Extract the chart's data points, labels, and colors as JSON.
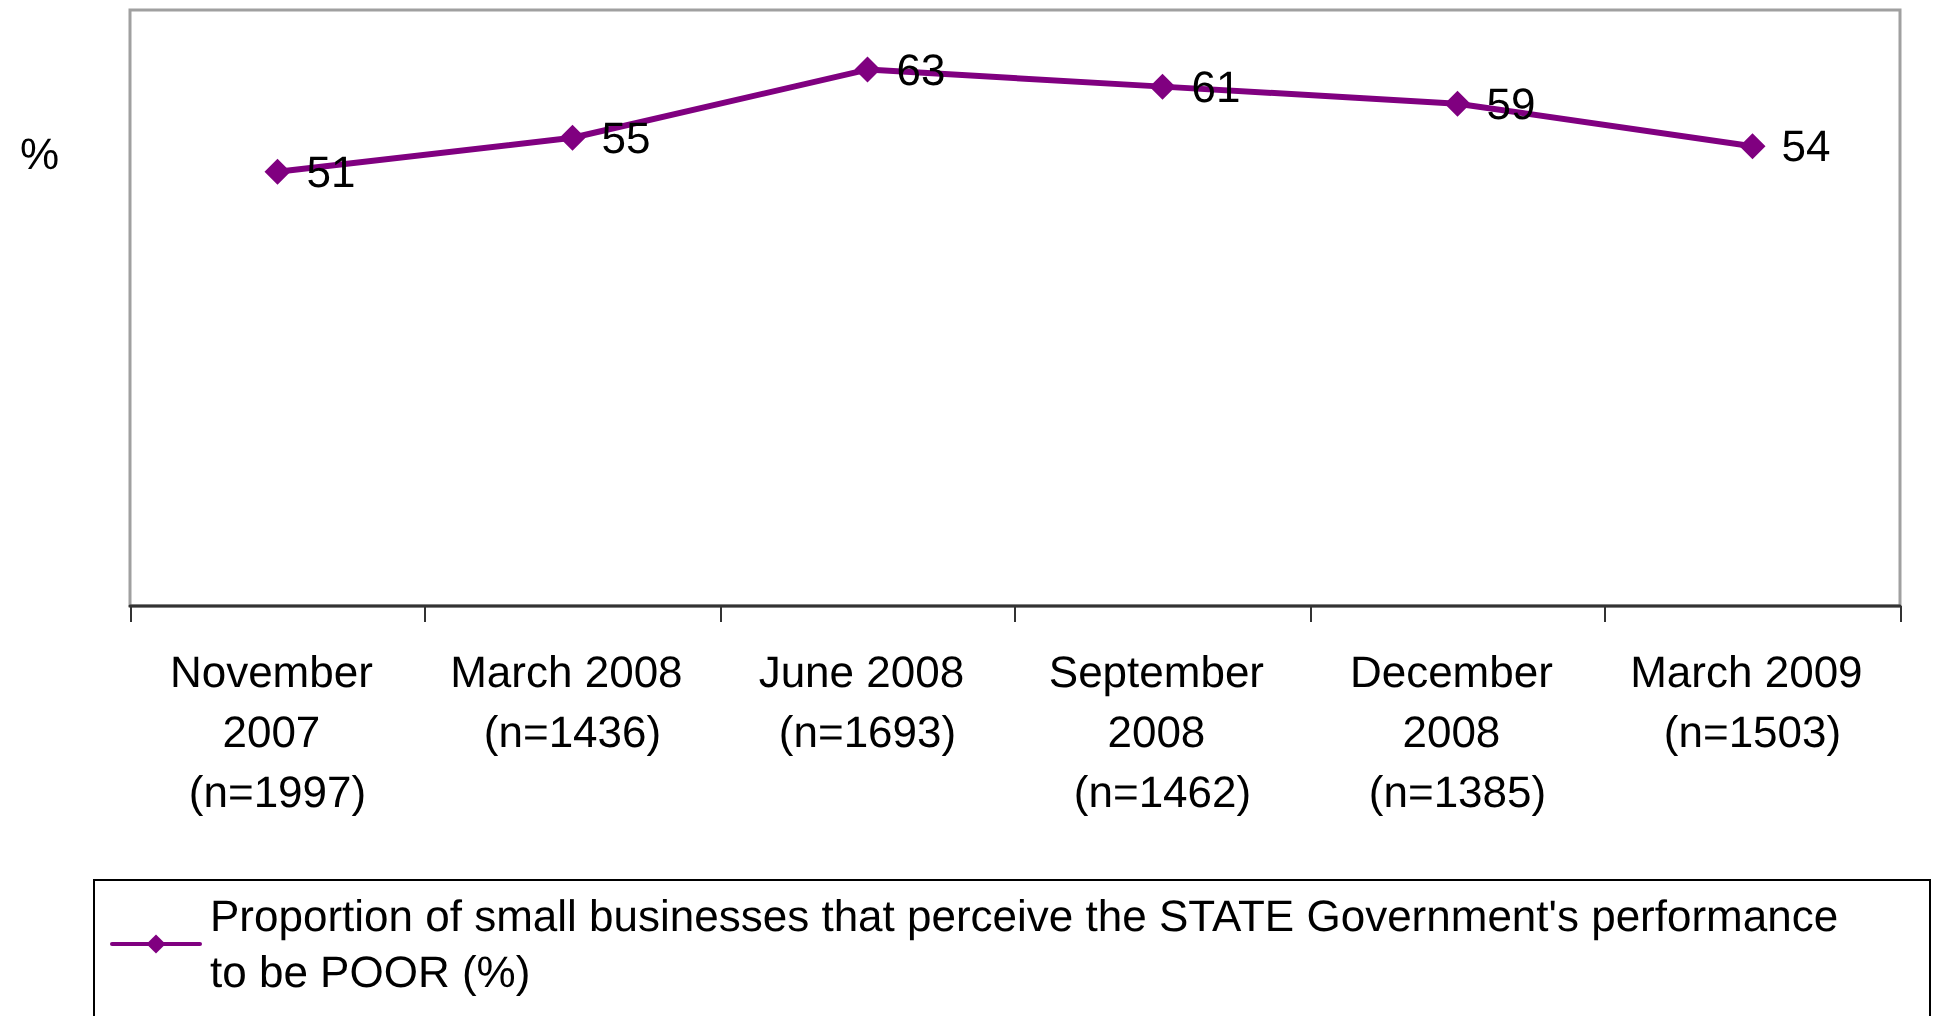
{
  "chart_data": {
    "type": "line",
    "ylabel": "%",
    "categories": [
      "November 2007 (n=1997)",
      "March 2008 (n=1436)",
      "June 2008 (n=1693)",
      "September 2008 (n=1462)",
      "December 2008 (n=1385)",
      "March 2009 (n=1503)"
    ],
    "series": [
      {
        "name": "Proportion of small businesses that perceive the STATE Government's performance to be POOR (%)",
        "color": "#800080",
        "values": [
          51,
          55,
          63,
          61,
          59,
          54
        ]
      }
    ],
    "marker": "diamond",
    "line_style": "solid",
    "data_labels": true,
    "legend": "bottom",
    "grid": false,
    "tick_labels": "x"
  }
}
